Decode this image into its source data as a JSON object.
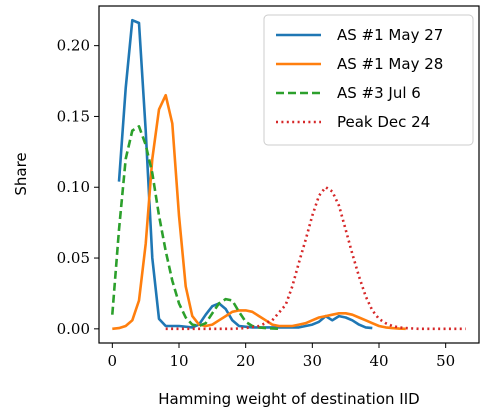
{
  "chart_data": {
    "type": "line",
    "title": "",
    "xlabel": "Hamming weight of destination IID",
    "ylabel": "Share",
    "xlim": [
      -2,
      55
    ],
    "ylim": [
      -0.01,
      0.228
    ],
    "xticks": [
      0,
      10,
      20,
      30,
      40,
      50
    ],
    "yticks": [
      0.0,
      0.05,
      0.1,
      0.15,
      0.2
    ],
    "xtick_labels": [
      "0",
      "10",
      "20",
      "30",
      "40",
      "50"
    ],
    "ytick_labels": [
      "0.00",
      "0.05",
      "0.10",
      "0.15",
      "0.20"
    ],
    "grid": false,
    "legend_position": "top-right",
    "series": [
      {
        "name": "AS #1 May 27",
        "color": "#1f77b4",
        "dash": "solid",
        "points": [
          [
            1,
            0.104
          ],
          [
            2,
            0.17
          ],
          [
            3,
            0.218
          ],
          [
            4,
            0.216
          ],
          [
            5,
            0.14
          ],
          [
            6,
            0.05
          ],
          [
            7,
            0.007
          ],
          [
            8,
            0.002
          ],
          [
            10,
            0.002
          ],
          [
            12,
            0.001
          ],
          [
            13,
            0.003
          ],
          [
            14,
            0.01
          ],
          [
            15,
            0.016
          ],
          [
            16,
            0.018
          ],
          [
            17,
            0.014
          ],
          [
            18,
            0.006
          ],
          [
            19,
            0.002
          ],
          [
            21,
            0.001
          ],
          [
            25,
            0.001
          ],
          [
            28,
            0.001
          ],
          [
            30,
            0.003
          ],
          [
            31,
            0.005
          ],
          [
            32,
            0.009
          ],
          [
            33,
            0.006
          ],
          [
            34,
            0.009
          ],
          [
            35,
            0.008
          ],
          [
            36,
            0.006
          ],
          [
            37,
            0.003
          ],
          [
            38,
            0.001
          ],
          [
            39,
            0.0005
          ]
        ]
      },
      {
        "name": "AS #1 May 28",
        "color": "#ff7f0e",
        "dash": "solid",
        "points": [
          [
            0,
            0.0
          ],
          [
            1,
            0.0005
          ],
          [
            2,
            0.002
          ],
          [
            3,
            0.006
          ],
          [
            4,
            0.02
          ],
          [
            5,
            0.06
          ],
          [
            6,
            0.12
          ],
          [
            7,
            0.155
          ],
          [
            8,
            0.165
          ],
          [
            9,
            0.145
          ],
          [
            10,
            0.08
          ],
          [
            11,
            0.03
          ],
          [
            12,
            0.009
          ],
          [
            13,
            0.003
          ],
          [
            14,
            0.002
          ],
          [
            15,
            0.003
          ],
          [
            16,
            0.006
          ],
          [
            17,
            0.009
          ],
          [
            18,
            0.012
          ],
          [
            19,
            0.013
          ],
          [
            20,
            0.013
          ],
          [
            21,
            0.012
          ],
          [
            22,
            0.009
          ],
          [
            23,
            0.006
          ],
          [
            24,
            0.003
          ],
          [
            25,
            0.002
          ],
          [
            26,
            0.002
          ],
          [
            27,
            0.002
          ],
          [
            28,
            0.003
          ],
          [
            29,
            0.004
          ],
          [
            30,
            0.006
          ],
          [
            31,
            0.008
          ],
          [
            32,
            0.009
          ],
          [
            33,
            0.01
          ],
          [
            34,
            0.011
          ],
          [
            35,
            0.011
          ],
          [
            36,
            0.01
          ],
          [
            37,
            0.008
          ],
          [
            38,
            0.006
          ],
          [
            39,
            0.004
          ],
          [
            40,
            0.002
          ],
          [
            41,
            0.001
          ],
          [
            42,
            0.0005
          ],
          [
            43,
            0.0002
          ],
          [
            44,
            0.0
          ]
        ]
      },
      {
        "name": "AS #3 Jul 6",
        "color": "#2ca02c",
        "dash": "dashed",
        "points": [
          [
            0,
            0.01
          ],
          [
            1,
            0.07
          ],
          [
            2,
            0.12
          ],
          [
            3,
            0.14
          ],
          [
            4,
            0.143
          ],
          [
            5,
            0.13
          ],
          [
            6,
            0.11
          ],
          [
            7,
            0.08
          ],
          [
            8,
            0.055
          ],
          [
            9,
            0.034
          ],
          [
            10,
            0.018
          ],
          [
            11,
            0.008
          ],
          [
            12,
            0.003
          ],
          [
            13,
            0.002
          ],
          [
            14,
            0.004
          ],
          [
            15,
            0.011
          ],
          [
            16,
            0.018
          ],
          [
            17,
            0.021
          ],
          [
            18,
            0.02
          ],
          [
            19,
            0.012
          ],
          [
            20,
            0.005
          ],
          [
            21,
            0.002
          ],
          [
            22,
            0.001
          ],
          [
            23,
            0.0005
          ],
          [
            24,
            0.0003
          ],
          [
            25,
            0.0
          ]
        ]
      },
      {
        "name": "Peak Dec 24",
        "color": "#d62728",
        "dash": "dotted",
        "points": [
          [
            8,
            0.0
          ],
          [
            18,
            0.0
          ],
          [
            20,
            0.0005
          ],
          [
            22,
            0.002
          ],
          [
            24,
            0.006
          ],
          [
            26,
            0.017
          ],
          [
            27,
            0.03
          ],
          [
            28,
            0.047
          ],
          [
            29,
            0.063
          ],
          [
            30,
            0.08
          ],
          [
            31,
            0.094
          ],
          [
            32,
            0.1
          ],
          [
            33,
            0.097
          ],
          [
            34,
            0.087
          ],
          [
            35,
            0.07
          ],
          [
            36,
            0.053
          ],
          [
            37,
            0.037
          ],
          [
            38,
            0.023
          ],
          [
            39,
            0.013
          ],
          [
            40,
            0.007
          ],
          [
            41,
            0.004
          ],
          [
            42,
            0.002
          ],
          [
            43,
            0.001
          ],
          [
            44,
            0.0005
          ],
          [
            46,
            0.0
          ],
          [
            50,
            0.0
          ],
          [
            53,
            0.0
          ]
        ]
      }
    ]
  }
}
